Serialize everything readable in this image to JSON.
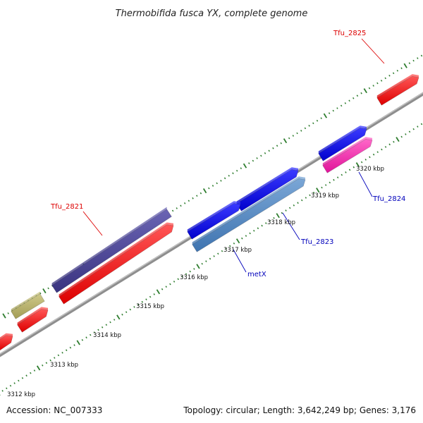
{
  "title": "Thermobifida fusca YX, complete genome",
  "accession": "Accession: NC_007333",
  "summary": "Topology: circular; Length: 3,642,249 bp; Genes: 3,176",
  "colors": {
    "backbone": "#999999",
    "backbone_light": "#bbbbbb",
    "tick": "#2e7d2e",
    "label_red": "#dd0000",
    "label_blue": "#0000bb"
  },
  "ticks": [
    {
      "label": "3312 kbp"
    },
    {
      "label": "3313 kbp"
    },
    {
      "label": "3314 kbp"
    },
    {
      "label": "3315 kbp"
    },
    {
      "label": "3316 kbp"
    },
    {
      "label": "3317 kbp"
    },
    {
      "label": "3318 kbp"
    },
    {
      "label": "3319 kbp"
    },
    {
      "label": "3320 kbp"
    }
  ],
  "gene_labels": [
    {
      "name": "Tfu_2825",
      "color": "red"
    },
    {
      "name": "Tfu_2821",
      "color": "red"
    },
    {
      "name": "Tfu_2824",
      "color": "blue"
    },
    {
      "name": "Tfu_2823",
      "color": "blue"
    },
    {
      "name": "metX",
      "color": "blue"
    }
  ]
}
